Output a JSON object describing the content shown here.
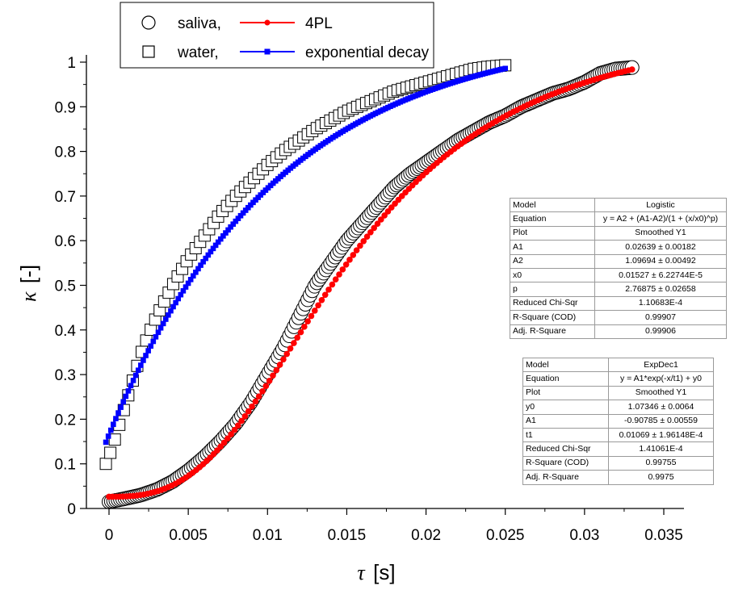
{
  "chart_data": {
    "type": "scatter",
    "xlabel_symbol": "τ",
    "xlabel_unit": "[s]",
    "ylabel_symbol": "κ",
    "ylabel_unit": "[-]",
    "xlim": [
      -0.002,
      0.035
    ],
    "ylim": [
      -0.01,
      1.02
    ],
    "x_ticks": [
      "0",
      "0.005",
      "0.01",
      "0.015",
      "0.02",
      "0.025",
      "0.03",
      "0.035"
    ],
    "y_ticks": [
      "0",
      "0.1",
      "0.2",
      "0.3",
      "0.4",
      "0.5",
      "0.6",
      "0.7",
      "0.8",
      "0.9",
      "1"
    ],
    "x_tick_values": [
      0,
      0.005,
      0.01,
      0.015,
      0.02,
      0.025,
      0.03,
      0.035
    ],
    "y_tick_values": [
      0,
      0.1,
      0.2,
      0.3,
      0.4,
      0.5,
      0.6,
      0.7,
      0.8,
      0.9,
      1
    ],
    "grid": false,
    "legend_position": "top-left",
    "legend": [
      {
        "marker_label": "saliva",
        "line_label": "4PL",
        "marker": "circle",
        "line_color": "#ff0000"
      },
      {
        "marker_label": "water",
        "line_label": "exponential decay",
        "marker": "square",
        "line_color": "#0000ff"
      }
    ],
    "series": [
      {
        "name": "saliva",
        "marker": "circle",
        "x": [
          0.0,
          0.001,
          0.002,
          0.003,
          0.004,
          0.005,
          0.006,
          0.007,
          0.008,
          0.009,
          0.01,
          0.011,
          0.012,
          0.013,
          0.014,
          0.015,
          0.016,
          0.017,
          0.018,
          0.019,
          0.02,
          0.021,
          0.022,
          0.023,
          0.024,
          0.025,
          0.026,
          0.027,
          0.028,
          0.029,
          0.03,
          0.031,
          0.032,
          0.033
        ],
        "y": [
          0.015,
          0.022,
          0.03,
          0.042,
          0.06,
          0.085,
          0.115,
          0.15,
          0.19,
          0.24,
          0.3,
          0.36,
          0.43,
          0.5,
          0.55,
          0.6,
          0.64,
          0.68,
          0.72,
          0.75,
          0.775,
          0.8,
          0.825,
          0.845,
          0.865,
          0.88,
          0.9,
          0.915,
          0.93,
          0.94,
          0.955,
          0.975,
          0.985,
          0.988
        ]
      },
      {
        "name": "4PL",
        "marker": "dot",
        "color": "#ff0000",
        "fit": "logistic",
        "params": {
          "A1": 0.02639,
          "A2": 1.09694,
          "x0": 0.01527,
          "p": 2.76875
        },
        "x_range": [
          0.0,
          0.033
        ]
      },
      {
        "name": "water",
        "marker": "square",
        "x": [
          -0.0002,
          0.0002,
          0.0005,
          0.0008,
          0.0011,
          0.0014,
          0.0017,
          0.002,
          0.0025,
          0.003,
          0.0035,
          0.004,
          0.0045,
          0.005,
          0.006,
          0.007,
          0.008,
          0.009,
          0.01,
          0.011,
          0.012,
          0.013,
          0.014,
          0.015,
          0.016,
          0.017,
          0.018,
          0.019,
          0.02,
          0.021,
          0.022,
          0.023,
          0.024,
          0.025
        ],
        "y": [
          0.1,
          0.135,
          0.17,
          0.205,
          0.24,
          0.275,
          0.31,
          0.345,
          0.39,
          0.43,
          0.465,
          0.5,
          0.53,
          0.56,
          0.61,
          0.66,
          0.7,
          0.735,
          0.77,
          0.8,
          0.825,
          0.85,
          0.87,
          0.89,
          0.905,
          0.92,
          0.935,
          0.945,
          0.955,
          0.965,
          0.975,
          0.985,
          0.99,
          0.993
        ]
      },
      {
        "name": "exponential decay",
        "marker": "small-square",
        "color": "#0000ff",
        "fit": "expdec1",
        "params": {
          "y0": 1.07346,
          "A1": -0.90785,
          "t1": 0.01069
        },
        "x_range": [
          -0.0002,
          0.025
        ]
      }
    ]
  },
  "stats_logistic": {
    "rows": [
      {
        "key": "Model",
        "value": "Logistic"
      },
      {
        "key": "Equation",
        "value": "y = A2 + (A1-A2)/(1 + (x/x0)^p)"
      },
      {
        "key": "Plot",
        "value": "Smoothed Y1"
      },
      {
        "key": "A1",
        "value": "0.02639 ± 0.00182"
      },
      {
        "key": "A2",
        "value": "1.09694 ± 0.00492"
      },
      {
        "key": "x0",
        "value": "0.01527 ± 6.22744E-5"
      },
      {
        "key": "p",
        "value": "2.76875 ± 0.02658"
      },
      {
        "key": "Reduced Chi-Sqr",
        "value": "1.10683E-4"
      },
      {
        "key": "R-Square (COD)",
        "value": "0.99907"
      },
      {
        "key": "Adj. R-Square",
        "value": "0.99906"
      }
    ]
  },
  "stats_expdec": {
    "rows": [
      {
        "key": "Model",
        "value": "ExpDec1"
      },
      {
        "key": "Equation",
        "value": "y = A1*exp(-x/t1) + y0"
      },
      {
        "key": "Plot",
        "value": "Smoothed Y1"
      },
      {
        "key": "y0",
        "value": "1.07346 ± 0.0064"
      },
      {
        "key": "A1",
        "value": "-0.90785 ± 0.00559"
      },
      {
        "key": "t1",
        "value": "0.01069 ± 1.96148E-4"
      },
      {
        "key": "Reduced Chi-Sqr",
        "value": "1.41061E-4"
      },
      {
        "key": "R-Square (COD)",
        "value": "0.99755"
      },
      {
        "key": "Adj. R-Square",
        "value": "0.9975"
      }
    ]
  }
}
